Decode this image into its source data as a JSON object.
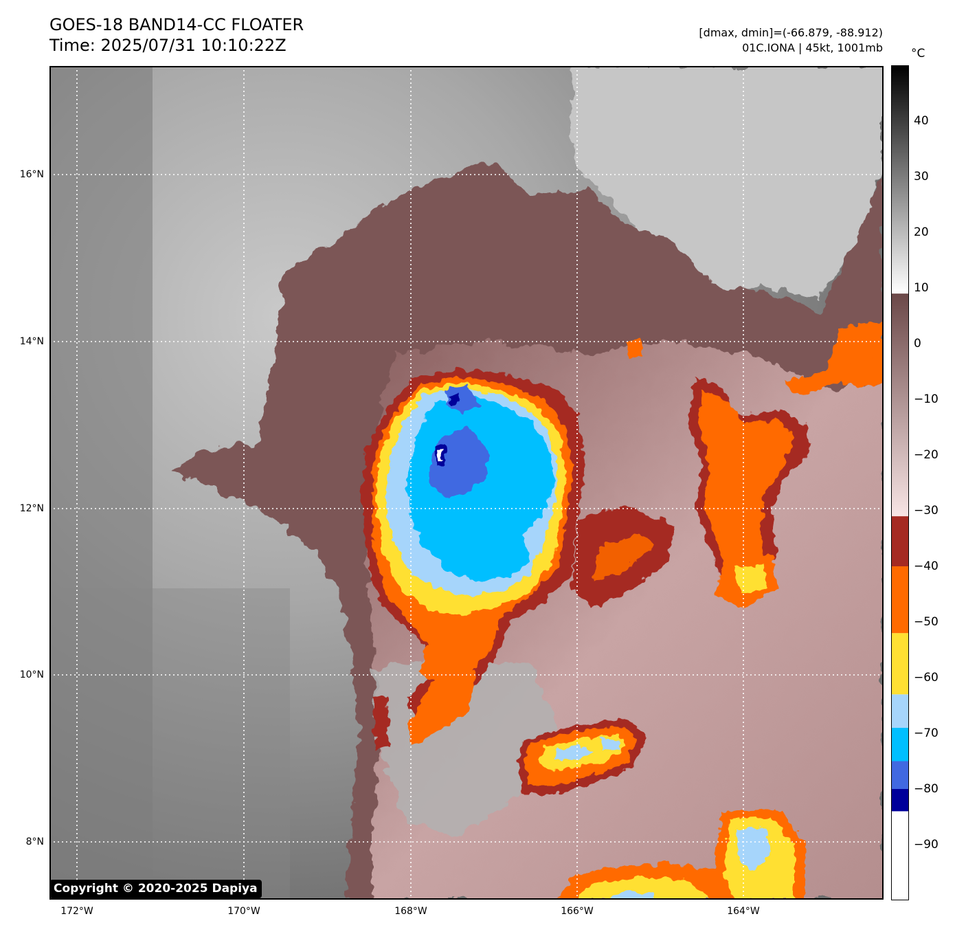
{
  "header": {
    "title_line1": "GOES-18 BAND14-CC FLOATER",
    "title_line2": "Time: 2025/07/31 10:10:22Z",
    "info_line1": "[dmax, dmin]=(-66.879, -88.912)",
    "info_line2": "01C.IONA | 45kt, 1001mb"
  },
  "colorbar": {
    "unit": "°C",
    "range": [
      -100,
      50
    ],
    "ticks": [
      "40",
      "30",
      "20",
      "10",
      "0",
      "−10",
      "−20",
      "−30",
      "−40",
      "−50",
      "−60",
      "−70",
      "−80",
      "−90"
    ],
    "tick_values": [
      40,
      30,
      20,
      10,
      0,
      -10,
      -20,
      -30,
      -40,
      -50,
      -60,
      -70,
      -80,
      -90
    ],
    "segments": [
      {
        "from": -100,
        "to": -84,
        "color": "#ffffff"
      },
      {
        "from": -84,
        "to": -80,
        "color": "#00009a"
      },
      {
        "from": -80,
        "to": -75,
        "color": "#4169e1"
      },
      {
        "from": -75,
        "to": -69,
        "color": "#00bfff"
      },
      {
        "from": -69,
        "to": -63,
        "color": "#a6d5fb"
      },
      {
        "from": -63,
        "to": -52,
        "color": "#ffe033"
      },
      {
        "from": -52,
        "to": -40,
        "color": "#ff6a00"
      },
      {
        "from": -40,
        "to": -31,
        "color": "#a52a22"
      },
      {
        "from": -31,
        "to": 9,
        "gradient": [
          "#f8e5e5",
          "#6b4848"
        ]
      },
      {
        "from": 9,
        "to": 50,
        "gradient": [
          "#ffffff",
          "#000000"
        ]
      }
    ]
  },
  "map": {
    "lat_labels": [
      "16°N",
      "14°N",
      "12°N",
      "10°N",
      "8°N"
    ],
    "lat_values": [
      16,
      14,
      12,
      10,
      8
    ],
    "lon_labels": [
      "172°W",
      "170°W",
      "168°W",
      "166°W",
      "164°W"
    ],
    "lon_values": [
      -172,
      -170,
      -168,
      -166,
      -164
    ],
    "lat_range": [
      7.3,
      17.3
    ],
    "lon_range": [
      -172.3,
      -162.3
    ],
    "storm_name": "01C.IONA",
    "colors": {
      "clear_sky": "#7a7a7a",
      "warm_cloud": "#bdbdbd",
      "cold_cloud": "#7b5656",
      "cold_cloud_pink": "#d9b8b8",
      "dark_red": "#a52a22",
      "orange": "#ff6a00",
      "yellow": "#ffe033",
      "light_blue": "#a6d5fb",
      "cyan": "#00bfff",
      "royal_blue": "#4169e1",
      "navy": "#00009a",
      "white": "#ffffff"
    }
  },
  "copyright": "Copyright © 2020-2025 Dapiya"
}
